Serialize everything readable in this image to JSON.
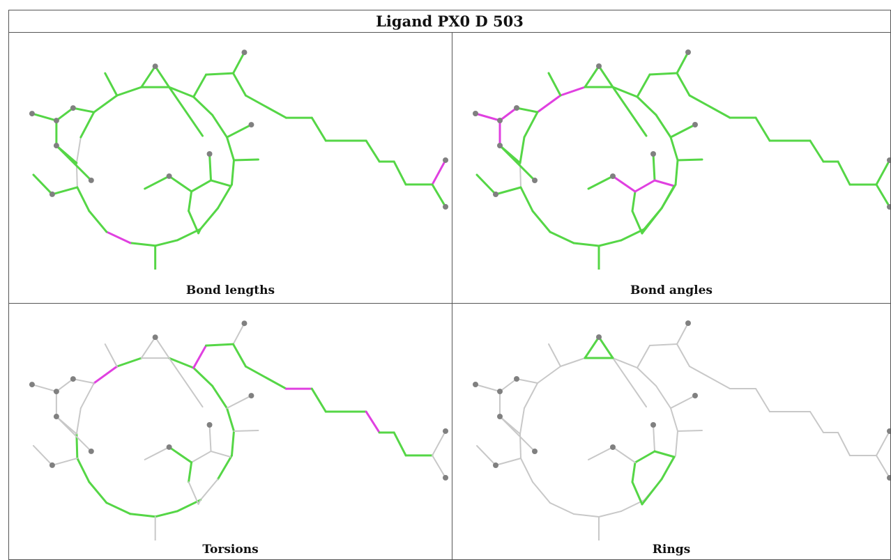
{
  "title": "Ligand PX0 D 503",
  "panels": [
    {
      "label": "Bond lengths"
    },
    {
      "label": "Bond angles"
    },
    {
      "label": "Torsions"
    },
    {
      "label": "Rings"
    }
  ],
  "colors": {
    "ok": "#55d646",
    "outlier": "#e040e0",
    "neutral": "#c8c8c8",
    "atom": "#808080",
    "border": "#555555"
  }
}
